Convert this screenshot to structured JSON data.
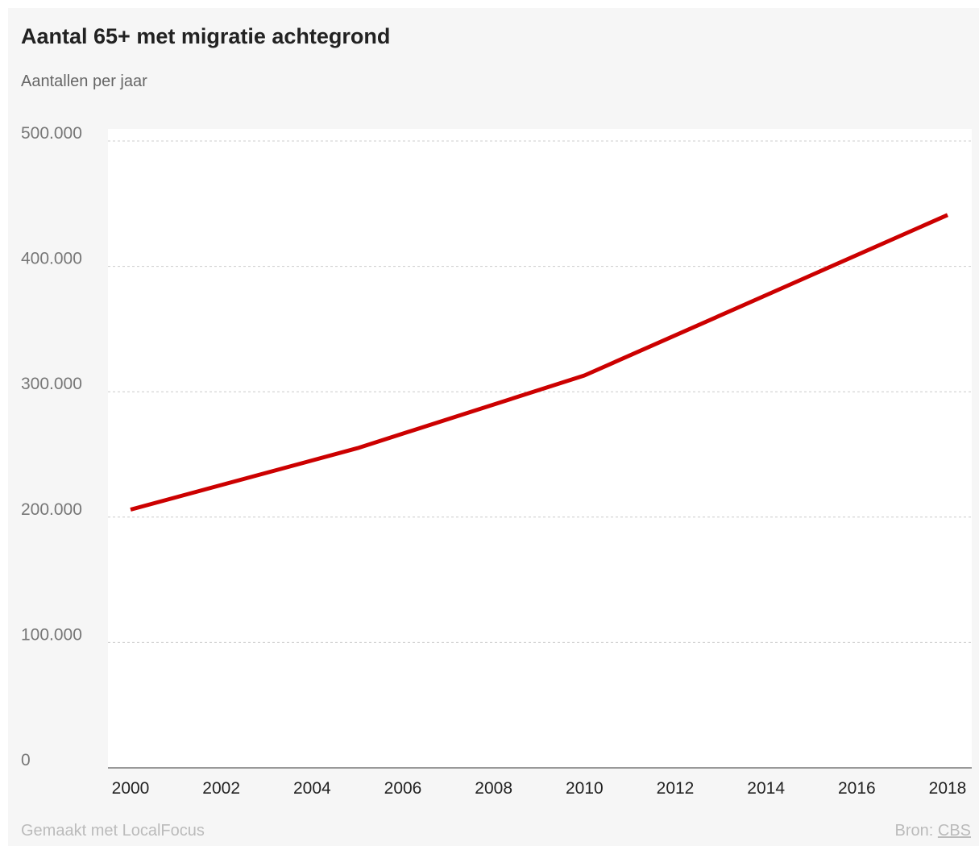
{
  "chart_data": {
    "type": "line",
    "title": "Aantal 65+ met migratie achtegrond",
    "subtitle": "Aantallen per jaar",
    "xlabel": "",
    "ylabel": "",
    "xlim": [
      2000,
      2018
    ],
    "ylim": [
      0,
      500000
    ],
    "x_ticks": [
      "2000",
      "2002",
      "2004",
      "2006",
      "2008",
      "2010",
      "2012",
      "2014",
      "2016",
      "2018"
    ],
    "y_ticks": [
      {
        "value": 0,
        "label": "0"
      },
      {
        "value": 100000,
        "label": "100.000"
      },
      {
        "value": 200000,
        "label": "200.000"
      },
      {
        "value": 300000,
        "label": "300.000"
      },
      {
        "value": 400000,
        "label": "400.000"
      },
      {
        "value": 500000,
        "label": "500.000"
      }
    ],
    "grid": true,
    "legend": "none",
    "series": [
      {
        "color": "#cc0000",
        "points": [
          {
            "x": 2000,
            "y": 206000
          },
          {
            "x": 2005,
            "y": 255000
          },
          {
            "x": 2010,
            "y": 313000
          },
          {
            "x": 2018,
            "y": 441000
          }
        ]
      }
    ]
  },
  "footer": {
    "made_with": "Gemaakt met LocalFocus",
    "source_label": "Bron:",
    "source_name": "CBS"
  },
  "colors": {
    "line": "#cc0000",
    "gridline": "#cccccc",
    "background": "#f6f6f6"
  }
}
